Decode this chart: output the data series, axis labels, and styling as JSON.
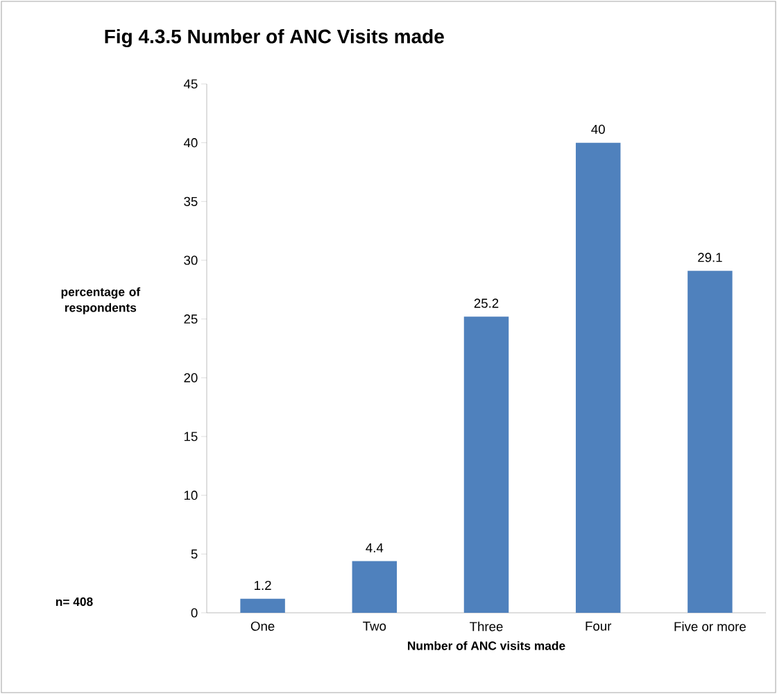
{
  "chart_data": {
    "type": "bar",
    "title": "Fig 4.3.5 Number of ANC Visits made",
    "xlabel": "Number of ANC visits made",
    "ylabel": "percentage of respondents",
    "annotations": [
      "n= 408"
    ],
    "categories": [
      "One",
      "Two",
      "Three",
      "Four",
      "Five or more"
    ],
    "values": [
      1.2,
      4.4,
      25.2,
      40,
      29.1
    ],
    "color": "#4f81bd",
    "ylim": [
      0,
      45
    ],
    "yticks": [
      0,
      5,
      10,
      15,
      20,
      25,
      30,
      35,
      40,
      45
    ],
    "data_labels": true,
    "grid": false
  }
}
